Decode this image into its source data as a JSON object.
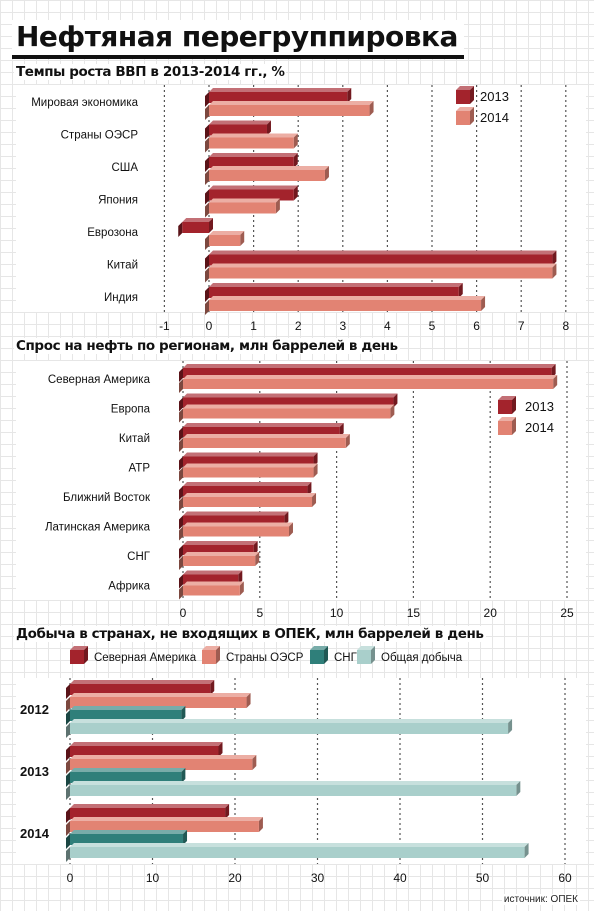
{
  "title": "Нефтяная перегруппировка",
  "source": "источник: ОПЕК",
  "colors": {
    "2013": "#a3232c",
    "2014": "#e28373",
    "north_america": "#a3232c",
    "oecd": "#e28373",
    "cis": "#2f7f7a",
    "total": "#a9cfcb"
  },
  "chart_data": [
    {
      "type": "bar",
      "orientation": "horizontal",
      "title": "Темпы роста ВВП в 2013-2014 гг., %",
      "categories": [
        "Мировая экономика",
        "Страны ОЭСР",
        "США",
        "Япония",
        "Еврозона",
        "Китай",
        "Индия"
      ],
      "series": [
        {
          "name": "2013",
          "values": [
            3.1,
            1.3,
            1.9,
            1.9,
            -0.6,
            7.7,
            5.6
          ]
        },
        {
          "name": "2014",
          "values": [
            3.6,
            1.9,
            2.6,
            1.5,
            0.7,
            7.7,
            6.1
          ]
        }
      ],
      "xlim": [
        -1,
        8
      ],
      "xticks": [
        -1,
        0,
        1,
        2,
        3,
        4,
        5,
        6,
        7,
        8
      ],
      "legend": "top-right",
      "grid": true
    },
    {
      "type": "bar",
      "orientation": "horizontal",
      "title": "Спрос на нефть по регионам, млн баррелей в день",
      "categories": [
        "Северная Америка",
        "Европа",
        "Китай",
        "АТР",
        "Ближний Восток",
        "Латинская Америка",
        "СНГ",
        "Африка"
      ],
      "series": [
        {
          "name": "2013",
          "values": [
            24.0,
            13.7,
            10.2,
            8.5,
            8.1,
            6.6,
            4.6,
            3.6
          ]
        },
        {
          "name": "2014",
          "values": [
            24.1,
            13.5,
            10.6,
            8.5,
            8.4,
            6.9,
            4.7,
            3.7
          ]
        }
      ],
      "xlim": [
        0,
        25
      ],
      "xticks": [
        0,
        5,
        10,
        15,
        20,
        25
      ],
      "legend": "right",
      "grid": true
    },
    {
      "type": "bar",
      "orientation": "horizontal",
      "title": "Добыча в странах, не входящих в ОПЕК, млн баррелей в день",
      "categories": [
        "2012",
        "2013",
        "2014"
      ],
      "series": [
        {
          "name": "Северная Америка",
          "values": [
            17.0,
            18.0,
            18.8
          ]
        },
        {
          "name": "Страны ОЭСР",
          "values": [
            21.4,
            22.1,
            22.9
          ]
        },
        {
          "name": "СНГ",
          "values": [
            13.5,
            13.5,
            13.7
          ]
        },
        {
          "name": "Общая добыча",
          "values": [
            53.1,
            54.1,
            55.1
          ]
        }
      ],
      "xlim": [
        0,
        60
      ],
      "xticks": [
        0,
        10,
        20,
        30,
        40,
        50,
        60
      ],
      "legend": "top",
      "grid": true
    }
  ]
}
